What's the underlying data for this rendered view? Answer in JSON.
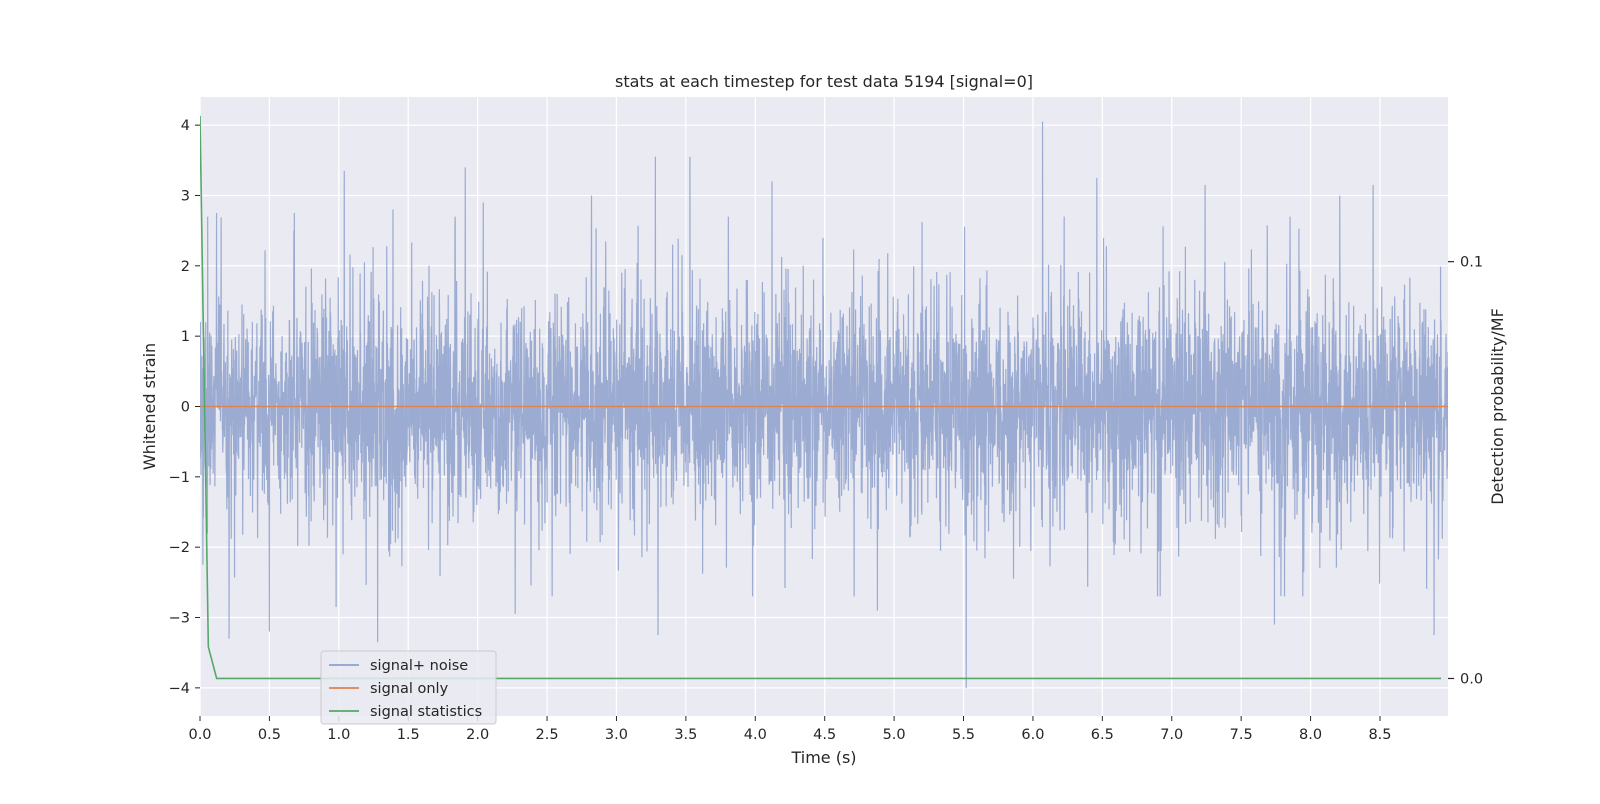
{
  "chart_data": {
    "type": "line",
    "title": "stats at each timestep for test data 5194 [signal=0]",
    "xlabel": "Time (s)",
    "ylabel": "Whitened strain",
    "y2label": "Detection probability/MF",
    "xlim": [
      0.0,
      8.99
    ],
    "ylim": [
      -4.4,
      4.4
    ],
    "y2lim": [
      -0.009,
      0.1395
    ],
    "xticks": [
      "0.0",
      "0.5",
      "1.0",
      "1.5",
      "2.0",
      "2.5",
      "3.0",
      "3.5",
      "4.0",
      "4.5",
      "5.0",
      "5.5",
      "6.0",
      "6.5",
      "7.0",
      "7.5",
      "8.0",
      "8.5"
    ],
    "yticks": [
      "4",
      "3",
      "2",
      "1",
      "0",
      "−1",
      "−2",
      "−3",
      "−4"
    ],
    "y2ticks": [
      "0.1",
      "0.0"
    ],
    "grid": true,
    "legend_position": "lower-left",
    "colors": {
      "plot_background": "#eaeaf2",
      "grid": "#ffffff",
      "noise": "#8da0cb",
      "signal": "#dd8452",
      "statistics": "#55a868"
    },
    "series": [
      {
        "name": "signal+ noise",
        "axis": "left",
        "style": "dense noise trace",
        "approx_envelope": [
          -2.3,
          2.3
        ],
        "peaks": [
          {
            "x": 0.02,
            "y": -2.25
          },
          {
            "x": 0.12,
            "y": 2.75
          },
          {
            "x": 0.21,
            "y": -3.3
          },
          {
            "x": 0.5,
            "y": -3.2
          },
          {
            "x": 0.68,
            "y": 2.75
          },
          {
            "x": 0.98,
            "y": -2.85
          },
          {
            "x": 1.04,
            "y": 3.35
          },
          {
            "x": 1.28,
            "y": -3.35
          },
          {
            "x": 1.39,
            "y": 2.8
          },
          {
            "x": 1.91,
            "y": 3.4
          },
          {
            "x": 2.04,
            "y": 2.9
          },
          {
            "x": 2.27,
            "y": -2.95
          },
          {
            "x": 2.82,
            "y": 3.0
          },
          {
            "x": 3.28,
            "y": 3.55
          },
          {
            "x": 3.3,
            "y": -3.25
          },
          {
            "x": 3.53,
            "y": 3.55
          },
          {
            "x": 4.12,
            "y": 3.2
          },
          {
            "x": 4.88,
            "y": -2.9
          },
          {
            "x": 5.52,
            "y": -4.0
          },
          {
            "x": 6.07,
            "y": 4.05
          },
          {
            "x": 6.46,
            "y": 3.25
          },
          {
            "x": 7.24,
            "y": 3.15
          },
          {
            "x": 7.74,
            "y": -3.1
          },
          {
            "x": 8.21,
            "y": 3.0
          },
          {
            "x": 8.45,
            "y": 3.15
          },
          {
            "x": 8.89,
            "y": -3.25
          }
        ]
      },
      {
        "name": "signal only",
        "axis": "left",
        "x": [
          0.0,
          8.99
        ],
        "y": [
          0.0,
          0.0
        ]
      },
      {
        "name": "signal statistics",
        "axis": "right",
        "x": [
          0.0,
          0.06,
          0.12,
          0.2,
          1.0,
          2.0,
          3.0,
          4.0,
          5.0,
          6.0,
          7.0,
          8.0,
          8.94
        ],
        "y": [
          0.135,
          0.0076,
          0.0,
          0.0,
          0.0,
          0.0,
          0.0,
          0.0,
          0.0,
          0.0,
          0.0,
          0.0,
          0.0
        ]
      }
    ]
  }
}
